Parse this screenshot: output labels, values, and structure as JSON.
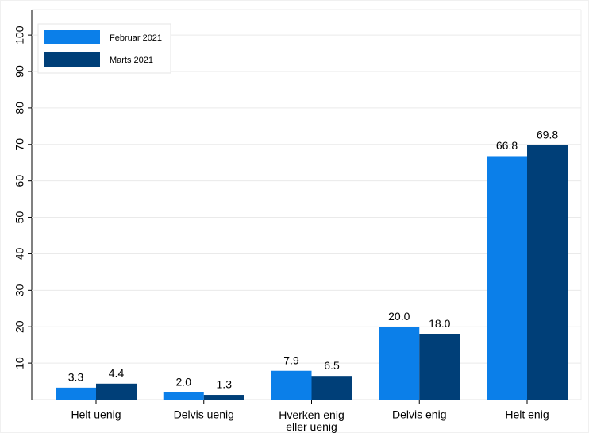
{
  "chart_data": {
    "type": "bar",
    "categories": [
      "Helt uenig",
      "Delvis uenig",
      "Hverken enig eller uenig",
      "Delvis enig",
      "Helt enig"
    ],
    "series": [
      {
        "name": "Februar 2021",
        "color": "#0b7fe9",
        "values": [
          3.3,
          2.0,
          7.9,
          20.0,
          66.8
        ],
        "value_labels": [
          "3.3",
          "2.0",
          "7.9",
          "20.0",
          "66.8"
        ]
      },
      {
        "name": "Marts 2021",
        "color": "#003f78",
        "values": [
          4.4,
          1.3,
          6.5,
          18.0,
          69.8
        ],
        "value_labels": [
          "4.4",
          "1.3",
          "6.5",
          "18.0",
          "69.8"
        ]
      }
    ],
    "ylim": [
      0,
      107
    ],
    "yticks": [
      10,
      20,
      30,
      40,
      50,
      60,
      70,
      80,
      90,
      100
    ],
    "grid": true,
    "legend": "top-left"
  }
}
